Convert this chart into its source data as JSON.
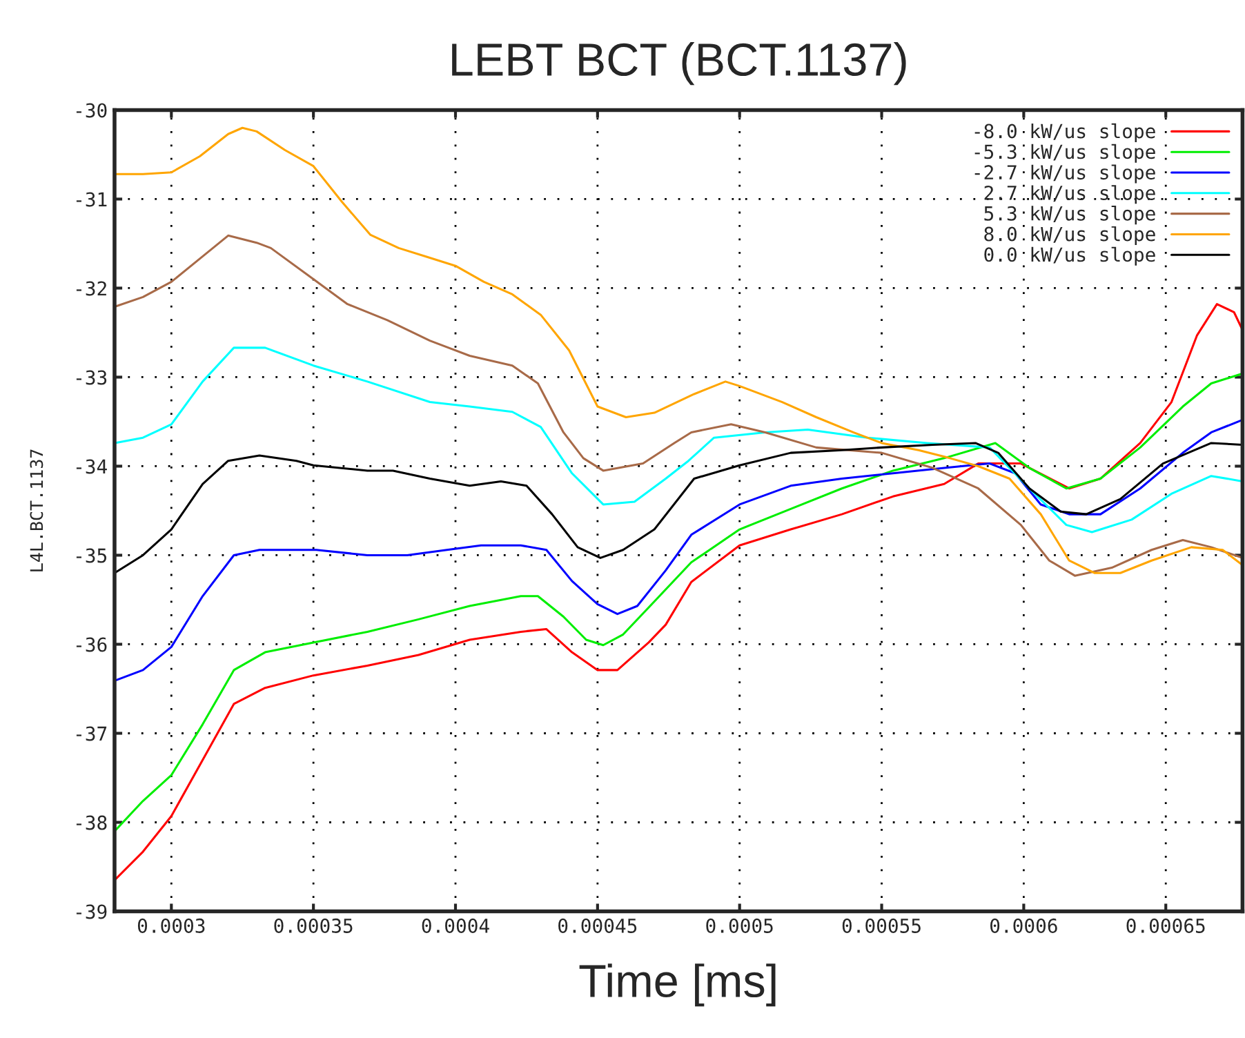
{
  "chart_data": {
    "type": "line",
    "title": "LEBT BCT (BCT.1137)",
    "xlabel": "Time [ms]",
    "ylabel": "L4L.BCT.1137",
    "xlim": [
      0.00028,
      0.000677
    ],
    "ylim": [
      -39,
      -30
    ],
    "xticks": [
      0.0003,
      0.00035,
      0.0004,
      0.00045,
      0.0005,
      0.00055,
      0.0006,
      0.00065
    ],
    "yticks": [
      -39,
      -38,
      -37,
      -36,
      -35,
      -34,
      -33,
      -32,
      -31,
      -30
    ],
    "grid": true,
    "legend": "top right",
    "marker": "none",
    "line_style": "solid",
    "series": [
      {
        "name": "-8.0 kW/us slope",
        "color": "#ff0000",
        "x": [
          0.00028,
          0.00029,
          0.0003,
          0.000311,
          0.000322,
          0.000333,
          0.00035,
          0.000369,
          0.000387,
          0.000405,
          0.000423,
          0.000432,
          0.000441,
          0.00045,
          0.000457,
          0.000468,
          0.000474,
          0.000483,
          0.0005,
          0.000518,
          0.000536,
          0.000554,
          0.000572,
          0.000584,
          0.000599,
          0.000616,
          0.000627,
          0.000641,
          0.000652,
          0.000661,
          0.000668,
          0.000674,
          0.000677
        ],
        "values": [
          -38.65,
          -38.33,
          -37.93,
          -37.3,
          -36.67,
          -36.49,
          -36.35,
          -36.24,
          -36.12,
          -35.95,
          -35.86,
          -35.83,
          -36.09,
          -36.29,
          -36.29,
          -35.98,
          -35.78,
          -35.3,
          -34.89,
          -34.71,
          -34.54,
          -34.34,
          -34.2,
          -33.97,
          -33.97,
          -34.25,
          -34.14,
          -33.74,
          -33.28,
          -32.53,
          -32.18,
          -32.27,
          -32.47
        ]
      },
      {
        "name": "-5.3 kW/us slope",
        "color": "#00ee00",
        "x": [
          0.00028,
          0.00029,
          0.0003,
          0.000311,
          0.000322,
          0.000333,
          0.00035,
          0.000369,
          0.000387,
          0.000405,
          0.000423,
          0.000429,
          0.000438,
          0.000446,
          0.000452,
          0.000459,
          0.00047,
          0.000483,
          0.0005,
          0.000518,
          0.000536,
          0.000554,
          0.000572,
          0.00059,
          0.000602,
          0.000615,
          0.000627,
          0.000641,
          0.000656,
          0.000666,
          0.000677
        ],
        "values": [
          -38.1,
          -37.76,
          -37.47,
          -36.9,
          -36.29,
          -36.09,
          -35.98,
          -35.86,
          -35.72,
          -35.57,
          -35.46,
          -35.46,
          -35.69,
          -35.95,
          -36.01,
          -35.89,
          -35.52,
          -35.08,
          -34.71,
          -34.48,
          -34.25,
          -34.05,
          -33.91,
          -33.74,
          -34.02,
          -34.25,
          -34.14,
          -33.79,
          -33.33,
          -33.07,
          -32.96
        ]
      },
      {
        "name": "-2.7 kW/us slope",
        "color": "#0000ff",
        "x": [
          0.00028,
          0.00029,
          0.0003,
          0.000311,
          0.000322,
          0.000331,
          0.000351,
          0.000369,
          0.000383,
          0.000397,
          0.000409,
          0.000423,
          0.000432,
          0.000441,
          0.00045,
          0.000457,
          0.000464,
          0.000474,
          0.000483,
          0.0005,
          0.000518,
          0.000536,
          0.000554,
          0.000572,
          0.000588,
          0.000597,
          0.000606,
          0.000616,
          0.000627,
          0.000641,
          0.000656,
          0.000666,
          0.000677
        ],
        "values": [
          -36.41,
          -36.29,
          -36.03,
          -35.46,
          -35.0,
          -34.94,
          -34.94,
          -35.0,
          -35.0,
          -34.94,
          -34.89,
          -34.89,
          -34.94,
          -35.29,
          -35.55,
          -35.66,
          -35.57,
          -35.17,
          -34.77,
          -34.43,
          -34.22,
          -34.14,
          -34.08,
          -34.02,
          -33.97,
          -34.08,
          -34.43,
          -34.54,
          -34.54,
          -34.25,
          -33.85,
          -33.62,
          -33.48
        ]
      },
      {
        "name": "2.7 kW/us slope",
        "color": "#00ffff",
        "x": [
          0.00028,
          0.00029,
          0.0003,
          0.000311,
          0.000322,
          0.000333,
          0.00035,
          0.000369,
          0.000391,
          0.000405,
          0.00042,
          0.00043,
          0.000441,
          0.000452,
          0.000463,
          0.000474,
          0.000482,
          0.000491,
          0.000509,
          0.000524,
          0.000545,
          0.000566,
          0.000588,
          0.000602,
          0.000615,
          0.000624,
          0.000638,
          0.000652,
          0.000666,
          0.000677
        ],
        "values": [
          -33.74,
          -33.68,
          -33.53,
          -33.05,
          -32.67,
          -32.67,
          -32.87,
          -33.05,
          -33.28,
          -33.33,
          -33.39,
          -33.56,
          -34.08,
          -34.43,
          -34.4,
          -34.14,
          -33.94,
          -33.68,
          -33.62,
          -33.59,
          -33.68,
          -33.74,
          -33.79,
          -34.25,
          -34.66,
          -34.74,
          -34.6,
          -34.31,
          -34.11,
          -34.17
        ]
      },
      {
        "name": "5.3 kW/us slope",
        "color": "#a86a48",
        "x": [
          0.00028,
          0.00029,
          0.0003,
          0.00031,
          0.00032,
          0.00033,
          0.000335,
          0.00035,
          0.000362,
          0.000376,
          0.000391,
          0.000405,
          0.00042,
          0.000429,
          0.000438,
          0.000445,
          0.000452,
          0.000466,
          0.000477,
          0.000483,
          0.000497,
          0.000509,
          0.000527,
          0.00055,
          0.000568,
          0.000584,
          0.000599,
          0.000609,
          0.000618,
          0.000631,
          0.000645,
          0.000656,
          0.000666,
          0.000677
        ],
        "values": [
          -32.21,
          -32.1,
          -31.93,
          -31.67,
          -31.41,
          -31.49,
          -31.55,
          -31.9,
          -32.18,
          -32.36,
          -32.59,
          -32.76,
          -32.87,
          -33.07,
          -33.62,
          -33.91,
          -34.05,
          -33.97,
          -33.74,
          -33.62,
          -33.53,
          -33.62,
          -33.79,
          -33.85,
          -34.02,
          -34.25,
          -34.66,
          -35.06,
          -35.23,
          -35.14,
          -34.94,
          -34.83,
          -34.91,
          -35.03
        ]
      },
      {
        "name": "8.0 kW/us slope",
        "color": "#ffa500",
        "x": [
          0.00028,
          0.00029,
          0.0003,
          0.00031,
          0.00032,
          0.000325,
          0.00033,
          0.00034,
          0.00035,
          0.00036,
          0.00037,
          0.00038,
          0.00039,
          0.0004,
          0.00041,
          0.00042,
          0.00043,
          0.00044,
          0.00045,
          0.00046,
          0.00047,
          0.000484,
          0.000495,
          0.0005,
          0.000515,
          0.000527,
          0.00054,
          0.00055,
          0.000563,
          0.000574,
          0.000584,
          0.000595,
          0.000606,
          0.000616,
          0.000625,
          0.000634,
          0.000645,
          0.000659,
          0.00067,
          0.000677
        ],
        "values": [
          -30.72,
          -30.72,
          -30.7,
          -30.52,
          -30.27,
          -30.2,
          -30.24,
          -30.45,
          -30.63,
          -31.03,
          -31.4,
          -31.55,
          -31.65,
          -31.75,
          -31.93,
          -32.07,
          -32.3,
          -32.7,
          -33.33,
          -33.45,
          -33.4,
          -33.19,
          -33.05,
          -33.1,
          -33.28,
          -33.45,
          -33.62,
          -33.74,
          -33.82,
          -33.91,
          -34.0,
          -34.14,
          -34.54,
          -35.06,
          -35.2,
          -35.2,
          -35.06,
          -34.91,
          -34.94,
          -35.11
        ]
      },
      {
        "name": "0.0 kW/us slope",
        "color": "#000000",
        "x": [
          0.00028,
          0.00029,
          0.0003,
          0.000311,
          0.00032,
          0.000331,
          0.000344,
          0.00035,
          0.000369,
          0.000378,
          0.000391,
          0.000405,
          0.000416,
          0.000425,
          0.000434,
          0.000443,
          0.000451,
          0.000459,
          0.00047,
          0.000484,
          0.0005,
          0.000518,
          0.000536,
          0.00055,
          0.000568,
          0.000583,
          0.000591,
          0.000602,
          0.000613,
          0.000622,
          0.000634,
          0.000649,
          0.000666,
          0.000677
        ],
        "values": [
          -35.2,
          -35.0,
          -34.71,
          -34.2,
          -33.94,
          -33.88,
          -33.94,
          -33.99,
          -34.05,
          -34.05,
          -34.14,
          -34.22,
          -34.17,
          -34.22,
          -34.54,
          -34.91,
          -35.03,
          -34.94,
          -34.71,
          -34.14,
          -33.99,
          -33.85,
          -33.82,
          -33.79,
          -33.76,
          -33.74,
          -33.85,
          -34.25,
          -34.51,
          -34.54,
          -34.37,
          -33.97,
          -33.74,
          -33.76
        ]
      }
    ]
  }
}
